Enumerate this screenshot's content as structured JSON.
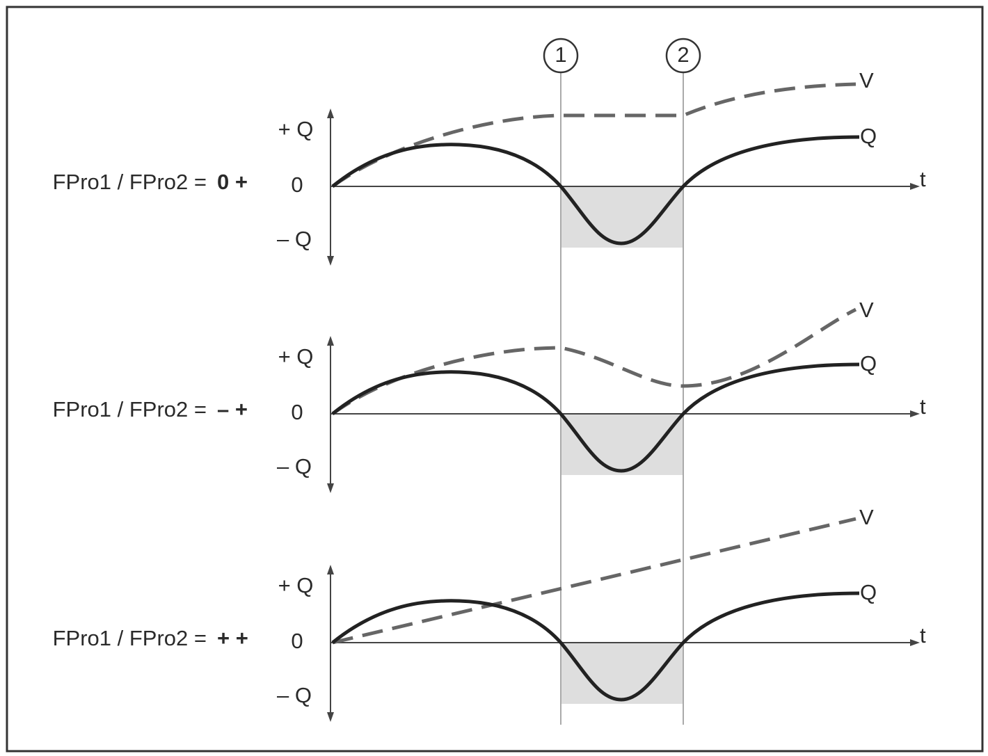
{
  "markers": [
    "1",
    "2"
  ],
  "panels": [
    {
      "label": "FPro1 / FPro2 =",
      "setting": "0 +",
      "axis": {
        "plus": "+ Q",
        "zero": "0",
        "minus": "– Q",
        "time": "t"
      },
      "curves": {
        "v": "V",
        "q": "Q"
      }
    },
    {
      "label": "FPro1 / FPro2 =",
      "setting": "– +",
      "axis": {
        "plus": "+ Q",
        "zero": "0",
        "minus": "– Q",
        "time": "t"
      },
      "curves": {
        "v": "V",
        "q": "Q"
      }
    },
    {
      "label": "FPro1 / FPro2 =",
      "setting": "+ +",
      "axis": {
        "plus": "+ Q",
        "zero": "0",
        "minus": "– Q",
        "time": "t"
      },
      "curves": {
        "v": "V",
        "q": "Q"
      }
    }
  ]
}
